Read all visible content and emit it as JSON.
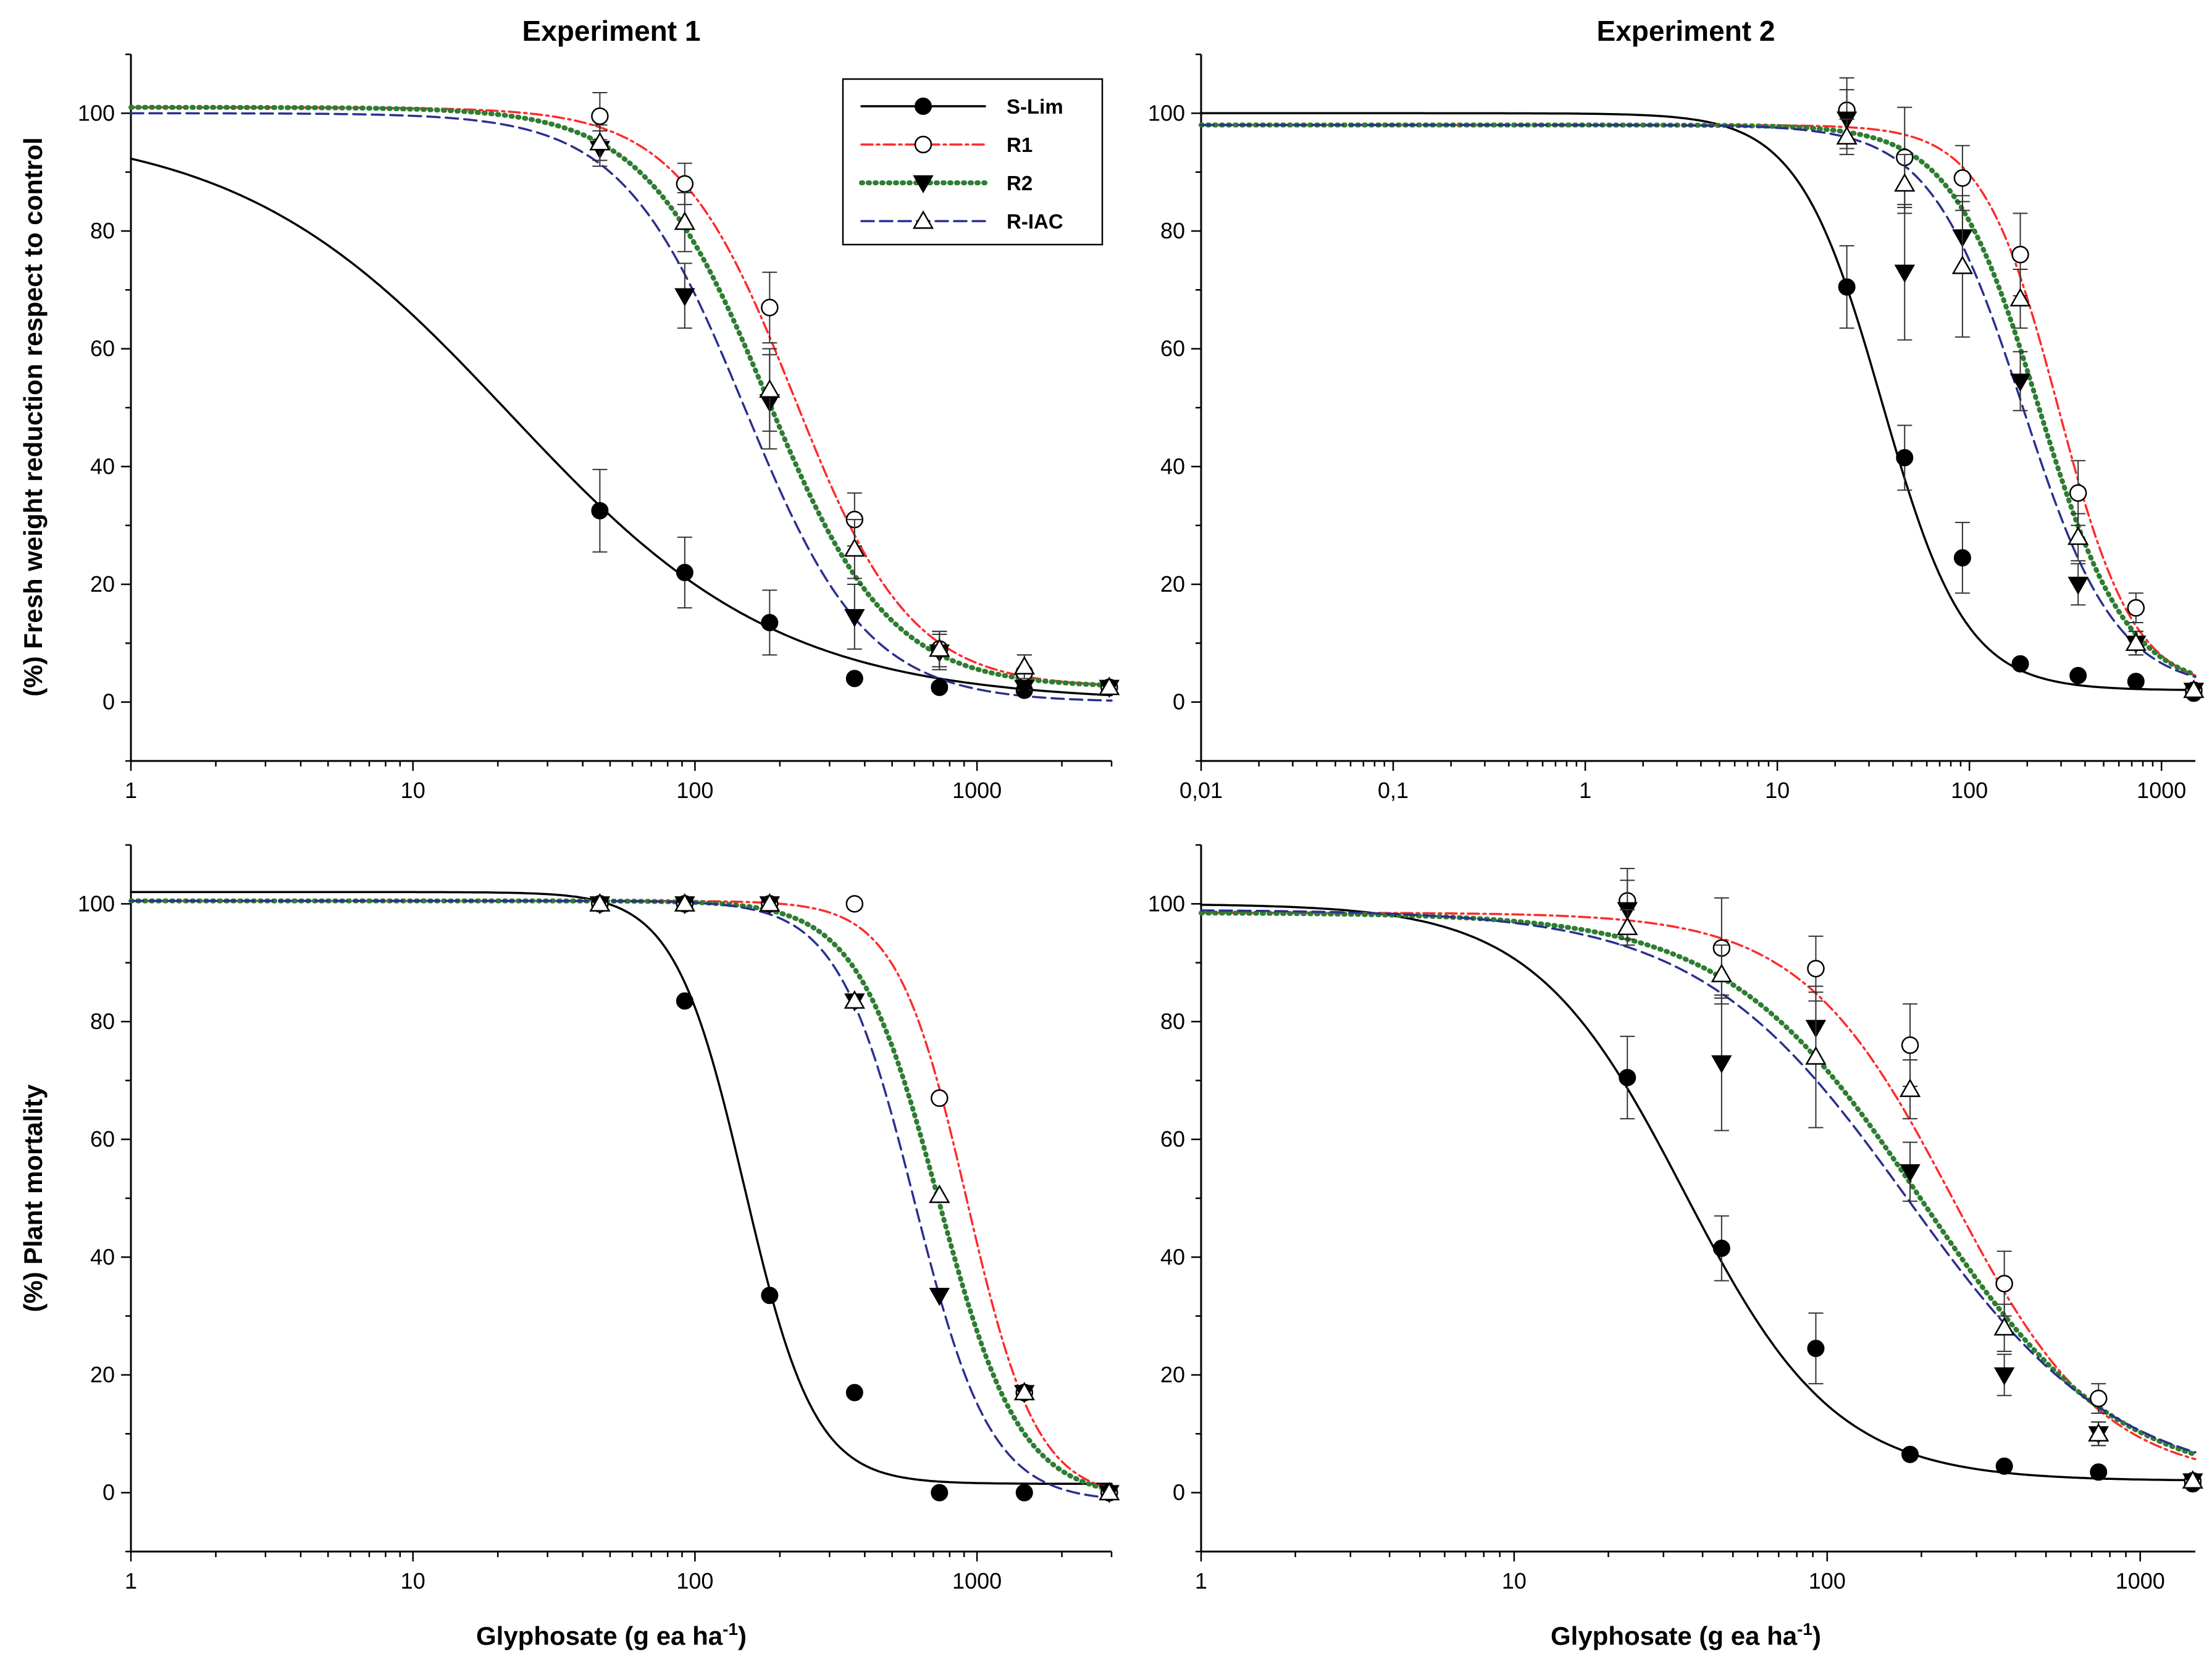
{
  "figure": {
    "xlabel_main": "Glyphosate (g ea ha",
    "xlabel_sup": "-1",
    "xlabel_close": ")"
  },
  "series_styles": [
    {
      "name": "S-Lim",
      "color": "#000000",
      "marker": "filled-circle",
      "line": "solid"
    },
    {
      "name": "R1",
      "color": "#ff2a2a",
      "marker": "open-circle",
      "line": "dash-dot"
    },
    {
      "name": "R2",
      "color": "#2e7d32",
      "marker": "filled-triangle-down",
      "line": "dotted"
    },
    {
      "name": "R-IAC",
      "color": "#2b2f8f",
      "marker": "open-triangle-up",
      "line": "dashed"
    }
  ],
  "legend": {
    "items": [
      "S-Lim",
      "R1",
      "R2",
      "R-IAC"
    ]
  },
  "chart_data": [
    {
      "type": "scatter",
      "title": "Experiment 1",
      "xlabel": "",
      "ylabel": "(%) Fresh weight reduction respect to control",
      "xscale": "log",
      "xlim": [
        1,
        3000
      ],
      "ylim": [
        -10,
        110
      ],
      "xticks": [
        1,
        10,
        100,
        1000
      ],
      "xtick_labels": [
        "1",
        "10",
        "100",
        "1000"
      ],
      "yticks": [
        0,
        20,
        40,
        60,
        80,
        100
      ],
      "ytick_labels": [
        "0",
        "20",
        "40",
        "60",
        "80",
        "100"
      ],
      "legend_position": "top-right",
      "series": [
        {
          "name": "S-Lim",
          "x": [
            46,
            92,
            184,
            368,
            736,
            1472,
            2944
          ],
          "y": [
            32.5,
            22,
            13.5,
            4,
            2.5,
            2,
            2.5
          ],
          "err": [
            7,
            6,
            5.5,
            1,
            1,
            1,
            1
          ],
          "fit": {
            "top": 98,
            "bottom": 0,
            "ec50": 22,
            "hill": 0.9
          }
        },
        {
          "name": "R1",
          "x": [
            46,
            92,
            184,
            368,
            736,
            1472,
            2944
          ],
          "y": [
            99.5,
            88,
            67,
            31,
            9,
            5,
            2.5
          ],
          "err": [
            4,
            3.5,
            6,
            4.5,
            3,
            3,
            1
          ],
          "fit": {
            "top": 101,
            "bottom": 2.5,
            "ec50": 225,
            "hill": 2.1
          }
        },
        {
          "name": "R2",
          "x": [
            46,
            92,
            184,
            368,
            736,
            1472,
            2944
          ],
          "y": [
            94,
            69,
            51,
            14.5,
            8.5,
            2.5,
            2.5
          ],
          "err": [
            3,
            5.5,
            8,
            5.5,
            3,
            1,
            1
          ],
          "fit": {
            "top": 101,
            "bottom": 2.5,
            "ec50": 180,
            "hill": 2.0
          }
        },
        {
          "name": "R-IAC",
          "x": [
            46,
            92,
            184,
            368,
            736,
            1472,
            2944
          ],
          "y": [
            95,
            81.5,
            53,
            26,
            9,
            6,
            2.5
          ],
          "err": [
            3,
            5,
            7,
            5,
            3,
            2,
            1
          ],
          "fit": {
            "top": 100,
            "bottom": 0,
            "ec50": 150,
            "hill": 2.0
          }
        }
      ]
    },
    {
      "type": "scatter",
      "title": "Experiment 2",
      "xlabel": "",
      "ylabel": "",
      "xscale": "log",
      "xlim": [
        0.01,
        1500
      ],
      "ylim": [
        -10,
        110
      ],
      "xticks": [
        0.01,
        0.1,
        1,
        10,
        100,
        1000
      ],
      "xtick_labels": [
        "0,01",
        "0,1",
        "1",
        "10",
        "100",
        "1000"
      ],
      "yticks": [
        0,
        20,
        40,
        60,
        80,
        100
      ],
      "ytick_labels": [
        "0",
        "20",
        "40",
        "60",
        "80",
        "100"
      ],
      "series": [
        {
          "name": "S-Lim",
          "x": [
            23,
            46,
            92,
            184,
            368,
            736,
            1472
          ],
          "y": [
            70.5,
            41.5,
            24.5,
            6.5,
            4.5,
            3.5,
            1.5
          ],
          "err": [
            7,
            5.5,
            6,
            1,
            1,
            1,
            1
          ],
          "fit": {
            "top": 100,
            "bottom": 2,
            "ec50": 35,
            "hill": 2.0
          }
        },
        {
          "name": "R1",
          "x": [
            23,
            46,
            92,
            184,
            368,
            736,
            1472
          ],
          "y": [
            100.5,
            92.5,
            89,
            76,
            35.5,
            16,
            2
          ],
          "err": [
            5.5,
            8.5,
            5.5,
            7,
            5.5,
            2.5,
            1
          ],
          "fit": {
            "top": 98,
            "bottom": 2,
            "ec50": 290,
            "hill": 2.2
          }
        },
        {
          "name": "R2",
          "x": [
            23,
            46,
            92,
            184,
            368,
            736,
            1472
          ],
          "y": [
            99,
            73,
            79,
            54.5,
            20,
            10,
            2
          ],
          "err": [
            5,
            11.5,
            6,
            5,
            3.5,
            2,
            1
          ],
          "fit": {
            "top": 98,
            "bottom": 2,
            "ec50": 230,
            "hill": 1.9
          }
        },
        {
          "name": "R-IAC",
          "x": [
            23,
            46,
            92,
            184,
            368,
            736,
            1472
          ],
          "y": [
            96,
            88,
            74,
            68.5,
            28,
            10,
            2
          ],
          "err": [
            3,
            5,
            12,
            5,
            4,
            2,
            1
          ],
          "fit": {
            "top": 98,
            "bottom": 2,
            "ec50": 190,
            "hill": 1.8
          }
        }
      ]
    },
    {
      "type": "scatter",
      "title": "",
      "xlabel": "Glyphosate (g ea ha-1)",
      "ylabel": "(%) Plant mortality",
      "xscale": "log",
      "xlim": [
        1,
        3000
      ],
      "ylim": [
        -10,
        110
      ],
      "xticks": [
        1,
        10,
        100,
        1000
      ],
      "xtick_labels": [
        "1",
        "10",
        "100",
        "1000"
      ],
      "yticks": [
        0,
        20,
        40,
        60,
        80,
        100
      ],
      "ytick_labels": [
        "0",
        "20",
        "40",
        "60",
        "80",
        "100"
      ],
      "series": [
        {
          "name": "S-Lim",
          "x": [
            46,
            92,
            184,
            368,
            736,
            1472,
            2944
          ],
          "y": [
            100,
            83.5,
            33.5,
            17,
            0,
            0,
            0
          ],
          "fit": {
            "top": 102,
            "bottom": 1.5,
            "ec50": 150,
            "hill": 3.5
          }
        },
        {
          "name": "R1",
          "x": [
            46,
            92,
            184,
            368,
            736,
            1472,
            2944
          ],
          "y": [
            100,
            100,
            100,
            100,
            67,
            17,
            0
          ],
          "fit": {
            "top": 100.5,
            "bottom": -1,
            "ec50": 920,
            "hill": 3.5
          }
        },
        {
          "name": "R2",
          "x": [
            46,
            92,
            184,
            368,
            736,
            1472,
            2944
          ],
          "y": [
            100,
            100,
            100,
            83.5,
            33.5,
            17,
            0
          ],
          "fit": {
            "top": 100.5,
            "bottom": -1,
            "ec50": 730,
            "hill": 3.0
          }
        },
        {
          "name": "R-IAC",
          "x": [
            46,
            92,
            184,
            368,
            736,
            1472,
            2944
          ],
          "y": [
            100,
            100,
            100,
            83.5,
            50.5,
            17,
            0
          ],
          "fit": {
            "top": 100.5,
            "bottom": -1.5,
            "ec50": 600,
            "hill": 3.2
          }
        }
      ]
    },
    {
      "type": "scatter",
      "title": "",
      "xlabel": "Glyphosate (g ea ha-1)",
      "ylabel": "",
      "xscale": "log",
      "xlim": [
        1,
        1500
      ],
      "ylim": [
        -10,
        110
      ],
      "xticks": [
        1,
        10,
        100,
        1000
      ],
      "xtick_labels": [
        "1",
        "10",
        "100",
        "1000"
      ],
      "yticks": [
        0,
        20,
        40,
        60,
        80,
        100
      ],
      "ytick_labels": [
        "0",
        "20",
        "40",
        "60",
        "80",
        "100"
      ],
      "series": [
        {
          "name": "S-Lim",
          "x": [
            23,
            46,
            92,
            184,
            368,
            736,
            1472
          ],
          "y": [
            70.5,
            41.5,
            24.5,
            6.5,
            4.5,
            3.5,
            1.5
          ],
          "err": [
            7,
            5.5,
            6,
            1,
            1,
            1,
            1
          ],
          "fit": {
            "top": 100,
            "bottom": 2,
            "ec50": 35,
            "hill": 1.8
          }
        },
        {
          "name": "R1",
          "x": [
            23,
            46,
            92,
            184,
            368,
            736,
            1472
          ],
          "y": [
            100.5,
            92.5,
            89,
            76,
            35.5,
            16,
            2
          ],
          "err": [
            5.5,
            8.5,
            5.5,
            7,
            5.5,
            2.5,
            1
          ],
          "fit": {
            "top": 98.5,
            "bottom": 2,
            "ec50": 250,
            "hill": 1.8
          }
        },
        {
          "name": "R2",
          "x": [
            23,
            46,
            92,
            184,
            368,
            736,
            1472
          ],
          "y": [
            99,
            73,
            79,
            54.5,
            20,
            10,
            2
          ],
          "err": [
            5,
            11.5,
            6,
            5,
            3.5,
            2,
            1
          ],
          "fit": {
            "top": 98.5,
            "bottom": 1,
            "ec50": 200,
            "hill": 1.4
          }
        },
        {
          "name": "R-IAC",
          "x": [
            23,
            46,
            92,
            184,
            368,
            736,
            1472
          ],
          "y": [
            96,
            88,
            74,
            68.5,
            28,
            10,
            2
          ],
          "err": [
            3,
            5,
            12,
            5,
            4,
            2,
            1
          ],
          "fit": {
            "top": 99,
            "bottom": 1,
            "ec50": 180,
            "hill": 1.3
          }
        }
      ]
    }
  ]
}
